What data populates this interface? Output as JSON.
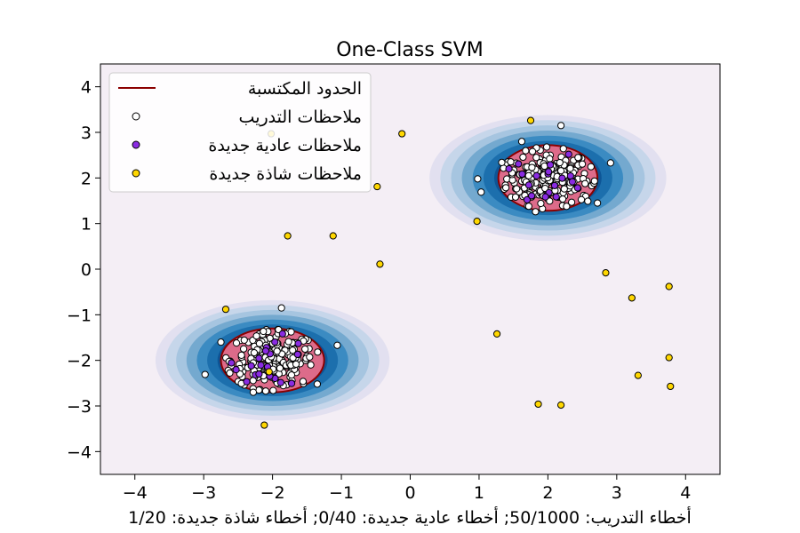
{
  "chart_data": {
    "type": "scatter",
    "title": "One-Class SVM",
    "xlabel": "أخطاء التدريب: 50/1000; أخطاء عادية جديدة: 0/40; أخطاء شاذة جديدة: 1/20",
    "ylabel": "",
    "xlim": [
      -4.5,
      4.5
    ],
    "ylim": [
      -4.5,
      4.5
    ],
    "x_ticks": [
      -4,
      -3,
      -2,
      -1,
      0,
      1,
      2,
      3,
      4
    ],
    "y_ticks": [
      -4,
      -3,
      -2,
      -1,
      0,
      1,
      2,
      3,
      4
    ],
    "x_tick_labels": [
      "−4",
      "−3",
      "−2",
      "−1",
      "0",
      "1",
      "2",
      "3",
      "4"
    ],
    "y_tick_labels": [
      "−4",
      "−3",
      "−2",
      "−1",
      "0",
      "1",
      "2",
      "3",
      "4"
    ],
    "grid": false,
    "legend_position": "top-left",
    "legend": [
      {
        "label": "الحدود المكتسبة",
        "marker": "line",
        "color": "#8b0000"
      },
      {
        "label": "ملاحظات التدريب",
        "marker": "circle",
        "color": "#ffffff"
      },
      {
        "label": "ملاحظات عادية جديدة",
        "marker": "circle",
        "color": "#8a2be2"
      },
      {
        "label": "ملاحظات شاذة جديدة",
        "marker": "circle",
        "color": "#ffd700"
      }
    ],
    "colors": {
      "background": "#f4eef5",
      "boundary": "#8b0000",
      "inside_fill": "#dd6b8a",
      "contour_levels": [
        "#e2e0f0",
        "#c6d6ea",
        "#a6c5e0",
        "#74a9cf",
        "#3b8bc2",
        "#1c6fad",
        "#0d5596"
      ],
      "training": "#ffffff",
      "normal_new": "#8a2be2",
      "abnormal_new": "#ffd700"
    },
    "clusters": [
      {
        "center": [
          2,
          2
        ],
        "boundary_radii": [
          0.72,
          0.72
        ]
      },
      {
        "center": [
          -2,
          -2
        ],
        "boundary_radii": [
          0.75,
          0.7
        ]
      }
    ],
    "abnormal_new": [
      [
        -2.02,
        2.97
      ],
      [
        -0.12,
        2.97
      ],
      [
        -0.48,
        1.81
      ],
      [
        -1.78,
        0.73
      ],
      [
        -1.12,
        0.73
      ],
      [
        -0.44,
        0.11
      ],
      [
        -2.68,
        -0.88
      ],
      [
        -2.12,
        -3.42
      ],
      [
        1.75,
        3.26
      ],
      [
        0.97,
        1.05
      ],
      [
        1.26,
        -1.42
      ],
      [
        2.84,
        -0.08
      ],
      [
        3.22,
        -0.63
      ],
      [
        3.76,
        -0.38
      ],
      [
        3.76,
        -1.94
      ],
      [
        3.31,
        -2.33
      ],
      [
        3.78,
        -2.57
      ],
      [
        1.86,
        -2.96
      ],
      [
        2.19,
        -2.98
      ],
      [
        -2.05,
        -2.25
      ]
    ],
    "training_outliers": [
      [
        2.19,
        3.15
      ],
      [
        2.91,
        2.33
      ],
      [
        1.03,
        1.69
      ],
      [
        0.98,
        1.98
      ],
      [
        1.33,
        2.34
      ],
      [
        2.72,
        1.45
      ],
      [
        1.82,
        1.26
      ],
      [
        2.58,
        1.49
      ],
      [
        1.62,
        2.8
      ],
      [
        -1.87,
        -0.85
      ],
      [
        -1.06,
        -1.67
      ],
      [
        -2.98,
        -2.31
      ],
      [
        -2.28,
        -2.7
      ],
      [
        -1.35,
        -2.52
      ],
      [
        -2.75,
        -1.6
      ]
    ]
  }
}
